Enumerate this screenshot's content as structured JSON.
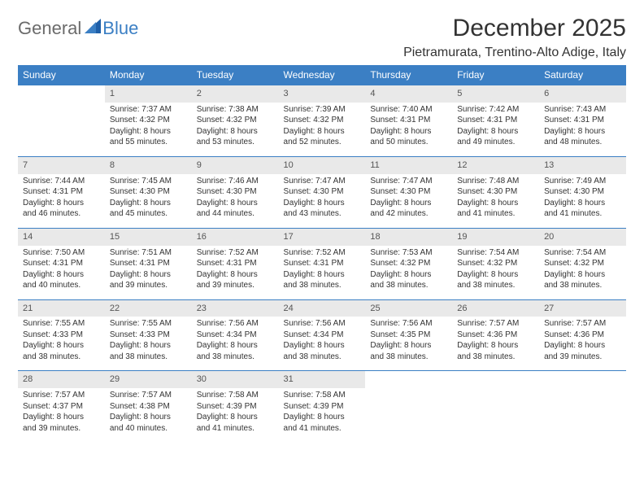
{
  "brand": {
    "part1": "General",
    "part2": "Blue"
  },
  "title": "December 2025",
  "location": "Pietramurata, Trentino-Alto Adige, Italy",
  "colors": {
    "header_bg": "#3b7fc4",
    "header_text": "#ffffff",
    "daynum_bg": "#e9e9e9",
    "daynum_text": "#555555",
    "body_text": "#333333",
    "row_border": "#3b7fc4",
    "logo_gray": "#6b6b6b",
    "logo_blue": "#3b7fc4"
  },
  "typography": {
    "title_fontsize": 30,
    "location_fontsize": 16,
    "weekday_fontsize": 12,
    "daynum_fontsize": 11,
    "detail_fontsize": 10
  },
  "weekdays": [
    "Sunday",
    "Monday",
    "Tuesday",
    "Wednesday",
    "Thursday",
    "Friday",
    "Saturday"
  ],
  "weeks": [
    [
      null,
      {
        "n": "1",
        "sr": "Sunrise: 7:37 AM",
        "ss": "Sunset: 4:32 PM",
        "d1": "Daylight: 8 hours",
        "d2": "and 55 minutes."
      },
      {
        "n": "2",
        "sr": "Sunrise: 7:38 AM",
        "ss": "Sunset: 4:32 PM",
        "d1": "Daylight: 8 hours",
        "d2": "and 53 minutes."
      },
      {
        "n": "3",
        "sr": "Sunrise: 7:39 AM",
        "ss": "Sunset: 4:32 PM",
        "d1": "Daylight: 8 hours",
        "d2": "and 52 minutes."
      },
      {
        "n": "4",
        "sr": "Sunrise: 7:40 AM",
        "ss": "Sunset: 4:31 PM",
        "d1": "Daylight: 8 hours",
        "d2": "and 50 minutes."
      },
      {
        "n": "5",
        "sr": "Sunrise: 7:42 AM",
        "ss": "Sunset: 4:31 PM",
        "d1": "Daylight: 8 hours",
        "d2": "and 49 minutes."
      },
      {
        "n": "6",
        "sr": "Sunrise: 7:43 AM",
        "ss": "Sunset: 4:31 PM",
        "d1": "Daylight: 8 hours",
        "d2": "and 48 minutes."
      }
    ],
    [
      {
        "n": "7",
        "sr": "Sunrise: 7:44 AM",
        "ss": "Sunset: 4:31 PM",
        "d1": "Daylight: 8 hours",
        "d2": "and 46 minutes."
      },
      {
        "n": "8",
        "sr": "Sunrise: 7:45 AM",
        "ss": "Sunset: 4:30 PM",
        "d1": "Daylight: 8 hours",
        "d2": "and 45 minutes."
      },
      {
        "n": "9",
        "sr": "Sunrise: 7:46 AM",
        "ss": "Sunset: 4:30 PM",
        "d1": "Daylight: 8 hours",
        "d2": "and 44 minutes."
      },
      {
        "n": "10",
        "sr": "Sunrise: 7:47 AM",
        "ss": "Sunset: 4:30 PM",
        "d1": "Daylight: 8 hours",
        "d2": "and 43 minutes."
      },
      {
        "n": "11",
        "sr": "Sunrise: 7:47 AM",
        "ss": "Sunset: 4:30 PM",
        "d1": "Daylight: 8 hours",
        "d2": "and 42 minutes."
      },
      {
        "n": "12",
        "sr": "Sunrise: 7:48 AM",
        "ss": "Sunset: 4:30 PM",
        "d1": "Daylight: 8 hours",
        "d2": "and 41 minutes."
      },
      {
        "n": "13",
        "sr": "Sunrise: 7:49 AM",
        "ss": "Sunset: 4:30 PM",
        "d1": "Daylight: 8 hours",
        "d2": "and 41 minutes."
      }
    ],
    [
      {
        "n": "14",
        "sr": "Sunrise: 7:50 AM",
        "ss": "Sunset: 4:31 PM",
        "d1": "Daylight: 8 hours",
        "d2": "and 40 minutes."
      },
      {
        "n": "15",
        "sr": "Sunrise: 7:51 AM",
        "ss": "Sunset: 4:31 PM",
        "d1": "Daylight: 8 hours",
        "d2": "and 39 minutes."
      },
      {
        "n": "16",
        "sr": "Sunrise: 7:52 AM",
        "ss": "Sunset: 4:31 PM",
        "d1": "Daylight: 8 hours",
        "d2": "and 39 minutes."
      },
      {
        "n": "17",
        "sr": "Sunrise: 7:52 AM",
        "ss": "Sunset: 4:31 PM",
        "d1": "Daylight: 8 hours",
        "d2": "and 38 minutes."
      },
      {
        "n": "18",
        "sr": "Sunrise: 7:53 AM",
        "ss": "Sunset: 4:32 PM",
        "d1": "Daylight: 8 hours",
        "d2": "and 38 minutes."
      },
      {
        "n": "19",
        "sr": "Sunrise: 7:54 AM",
        "ss": "Sunset: 4:32 PM",
        "d1": "Daylight: 8 hours",
        "d2": "and 38 minutes."
      },
      {
        "n": "20",
        "sr": "Sunrise: 7:54 AM",
        "ss": "Sunset: 4:32 PM",
        "d1": "Daylight: 8 hours",
        "d2": "and 38 minutes."
      }
    ],
    [
      {
        "n": "21",
        "sr": "Sunrise: 7:55 AM",
        "ss": "Sunset: 4:33 PM",
        "d1": "Daylight: 8 hours",
        "d2": "and 38 minutes."
      },
      {
        "n": "22",
        "sr": "Sunrise: 7:55 AM",
        "ss": "Sunset: 4:33 PM",
        "d1": "Daylight: 8 hours",
        "d2": "and 38 minutes."
      },
      {
        "n": "23",
        "sr": "Sunrise: 7:56 AM",
        "ss": "Sunset: 4:34 PM",
        "d1": "Daylight: 8 hours",
        "d2": "and 38 minutes."
      },
      {
        "n": "24",
        "sr": "Sunrise: 7:56 AM",
        "ss": "Sunset: 4:34 PM",
        "d1": "Daylight: 8 hours",
        "d2": "and 38 minutes."
      },
      {
        "n": "25",
        "sr": "Sunrise: 7:56 AM",
        "ss": "Sunset: 4:35 PM",
        "d1": "Daylight: 8 hours",
        "d2": "and 38 minutes."
      },
      {
        "n": "26",
        "sr": "Sunrise: 7:57 AM",
        "ss": "Sunset: 4:36 PM",
        "d1": "Daylight: 8 hours",
        "d2": "and 38 minutes."
      },
      {
        "n": "27",
        "sr": "Sunrise: 7:57 AM",
        "ss": "Sunset: 4:36 PM",
        "d1": "Daylight: 8 hours",
        "d2": "and 39 minutes."
      }
    ],
    [
      {
        "n": "28",
        "sr": "Sunrise: 7:57 AM",
        "ss": "Sunset: 4:37 PM",
        "d1": "Daylight: 8 hours",
        "d2": "and 39 minutes."
      },
      {
        "n": "29",
        "sr": "Sunrise: 7:57 AM",
        "ss": "Sunset: 4:38 PM",
        "d1": "Daylight: 8 hours",
        "d2": "and 40 minutes."
      },
      {
        "n": "30",
        "sr": "Sunrise: 7:58 AM",
        "ss": "Sunset: 4:39 PM",
        "d1": "Daylight: 8 hours",
        "d2": "and 41 minutes."
      },
      {
        "n": "31",
        "sr": "Sunrise: 7:58 AM",
        "ss": "Sunset: 4:39 PM",
        "d1": "Daylight: 8 hours",
        "d2": "and 41 minutes."
      },
      null,
      null,
      null
    ]
  ]
}
